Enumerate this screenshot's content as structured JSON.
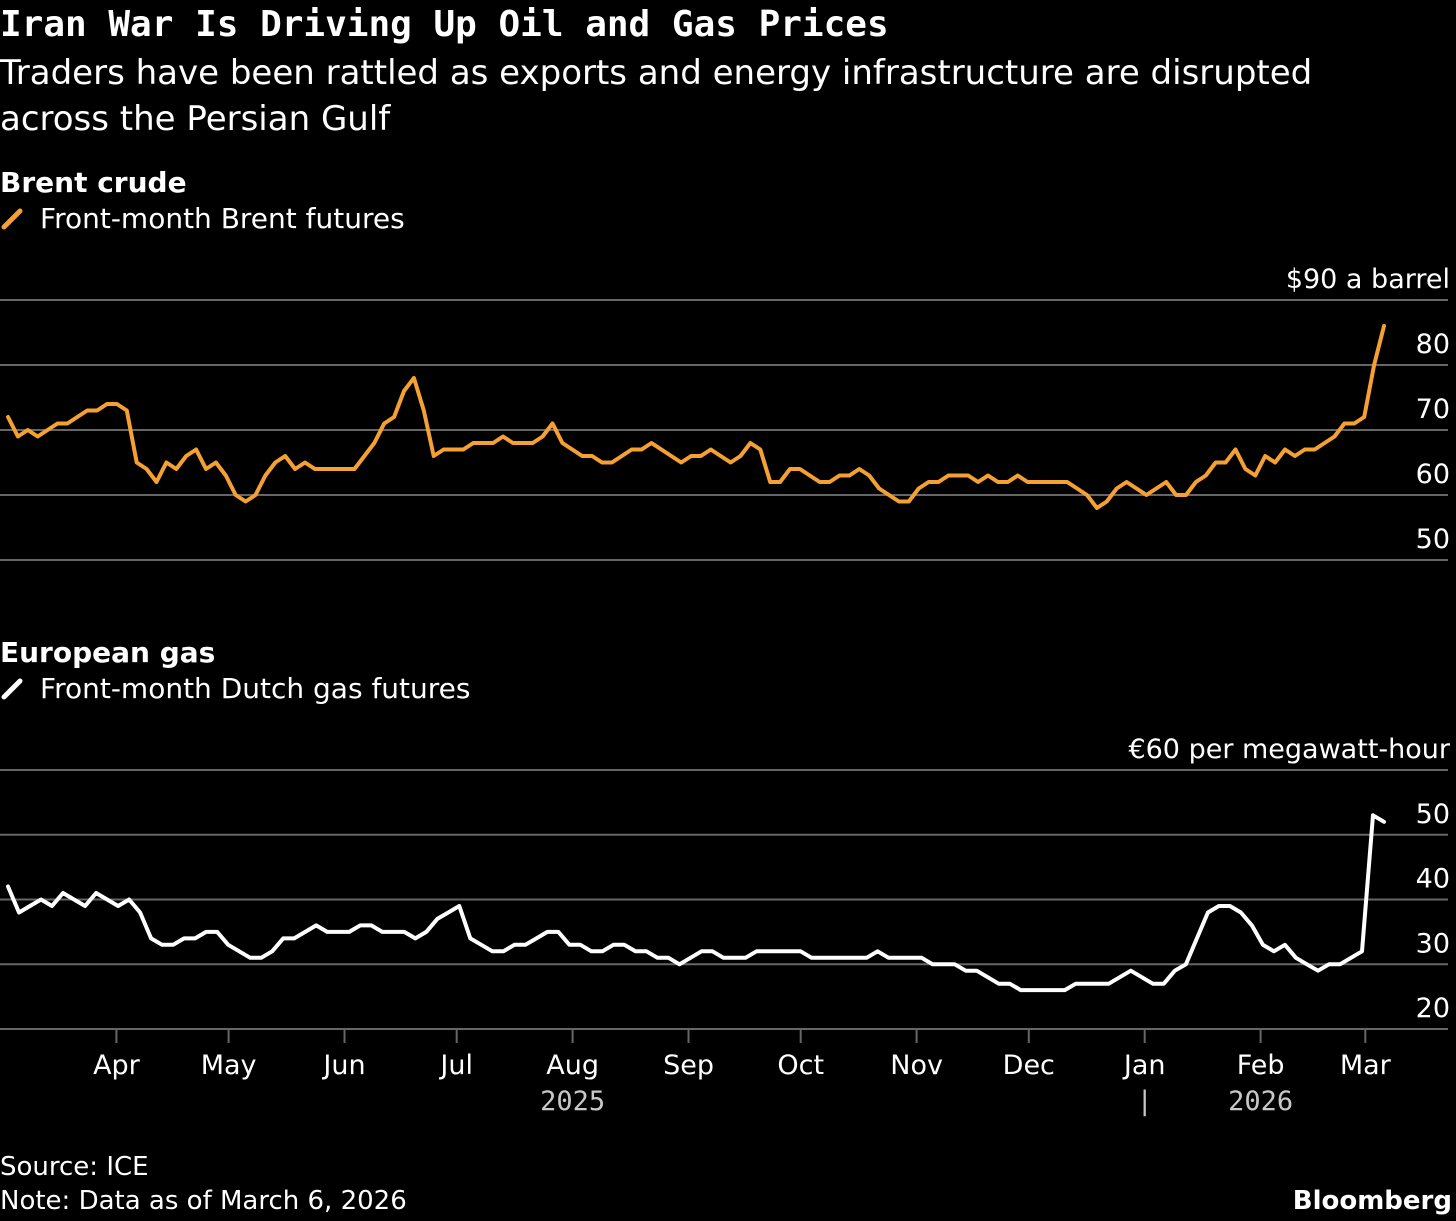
{
  "title": "Iran War Is Driving Up Oil and Gas Prices",
  "subtitle": "Traders have been rattled as exports and energy infrastructure are disrupted across the Persian Gulf",
  "colors": {
    "brent": "#f5a032",
    "gas": "#ffffff",
    "grid": "#666666",
    "axis_text": "#ffffff",
    "year_text": "#c8c8c8"
  },
  "panels": {
    "brent": {
      "heading": "Brent crude",
      "legend": "Front-month Brent futures",
      "icon": "orange-slash-legend-icon"
    },
    "gas": {
      "heading": "European gas",
      "legend": "Front-month Dutch gas futures",
      "icon": "white-slash-legend-icon"
    }
  },
  "chart_data": [
    {
      "type": "line",
      "title": "Brent crude",
      "series": [
        {
          "name": "Front-month Brent futures",
          "values": [
            72,
            69,
            70,
            69,
            70,
            71,
            71,
            72,
            73,
            73,
            74,
            74,
            73,
            65,
            64,
            62,
            65,
            64,
            66,
            67,
            64,
            65,
            63,
            60,
            59,
            60,
            63,
            65,
            66,
            64,
            65,
            64,
            64,
            64,
            64,
            64,
            66,
            68,
            71,
            72,
            76,
            78,
            73,
            66,
            67,
            67,
            67,
            68,
            68,
            68,
            69,
            68,
            68,
            68,
            69,
            71,
            68,
            67,
            66,
            66,
            65,
            65,
            66,
            67,
            67,
            68,
            67,
            66,
            65,
            66,
            66,
            67,
            66,
            65,
            66,
            68,
            67,
            62,
            62,
            64,
            64,
            63,
            62,
            62,
            63,
            63,
            64,
            63,
            61,
            60,
            59,
            59,
            61,
            62,
            62,
            63,
            63,
            63,
            62,
            63,
            62,
            62,
            63,
            62,
            62,
            62,
            62,
            62,
            61,
            60,
            58,
            59,
            61,
            62,
            61,
            60,
            61,
            62,
            60,
            60,
            62,
            63,
            65,
            65,
            67,
            64,
            63,
            66,
            65,
            67,
            66,
            67,
            67,
            68,
            69,
            71,
            71,
            72,
            80,
            86
          ]
        }
      ],
      "x_start": "2025-03-03",
      "x_end": "2026-03-06",
      "yticks": [
        50,
        60,
        70,
        80
      ],
      "ylim": [
        50,
        90
      ],
      "unit_label": "$90 a barrel",
      "xlabel": "",
      "ylabel": ""
    },
    {
      "type": "line",
      "title": "European gas",
      "series": [
        {
          "name": "Front-month Dutch gas futures",
          "values": [
            42,
            38,
            39,
            40,
            39,
            41,
            40,
            39,
            41,
            40,
            39,
            40,
            38,
            34,
            33,
            33,
            34,
            34,
            35,
            35,
            33,
            32,
            31,
            31,
            32,
            34,
            34,
            35,
            36,
            35,
            35,
            35,
            36,
            36,
            35,
            35,
            35,
            34,
            35,
            37,
            38,
            39,
            34,
            33,
            32,
            32,
            33,
            33,
            34,
            35,
            35,
            33,
            33,
            32,
            32,
            33,
            33,
            32,
            32,
            31,
            31,
            30,
            31,
            32,
            32,
            31,
            31,
            31,
            32,
            32,
            32,
            32,
            32,
            31,
            31,
            31,
            31,
            31,
            31,
            32,
            31,
            31,
            31,
            31,
            30,
            30,
            30,
            29,
            29,
            28,
            27,
            27,
            26,
            26,
            26,
            26,
            26,
            27,
            27,
            27,
            27,
            28,
            29,
            28,
            27,
            27,
            29,
            30,
            34,
            38,
            39,
            39,
            38,
            36,
            33,
            32,
            33,
            31,
            30,
            29,
            30,
            30,
            31,
            32,
            53,
            52
          ]
        }
      ],
      "x_start": "2025-03-03",
      "x_end": "2026-03-06",
      "yticks": [
        20,
        30,
        40,
        50
      ],
      "ylim": [
        20,
        60
      ],
      "unit_label": "€60 per megawatt-hour",
      "xlabel": "",
      "ylabel": ""
    }
  ],
  "x_axis": {
    "months": [
      "Apr",
      "May",
      "Jun",
      "Jul",
      "Aug",
      "Sep",
      "Oct",
      "Nov",
      "Dec",
      "Jan",
      "Feb",
      "Mar"
    ],
    "year_labels": [
      "2025",
      "2026"
    ],
    "year_divider": "|"
  },
  "footer": {
    "source": "Source: ICE",
    "note": "Note: Data as of March 6, 2026",
    "brand": "Bloomberg"
  }
}
